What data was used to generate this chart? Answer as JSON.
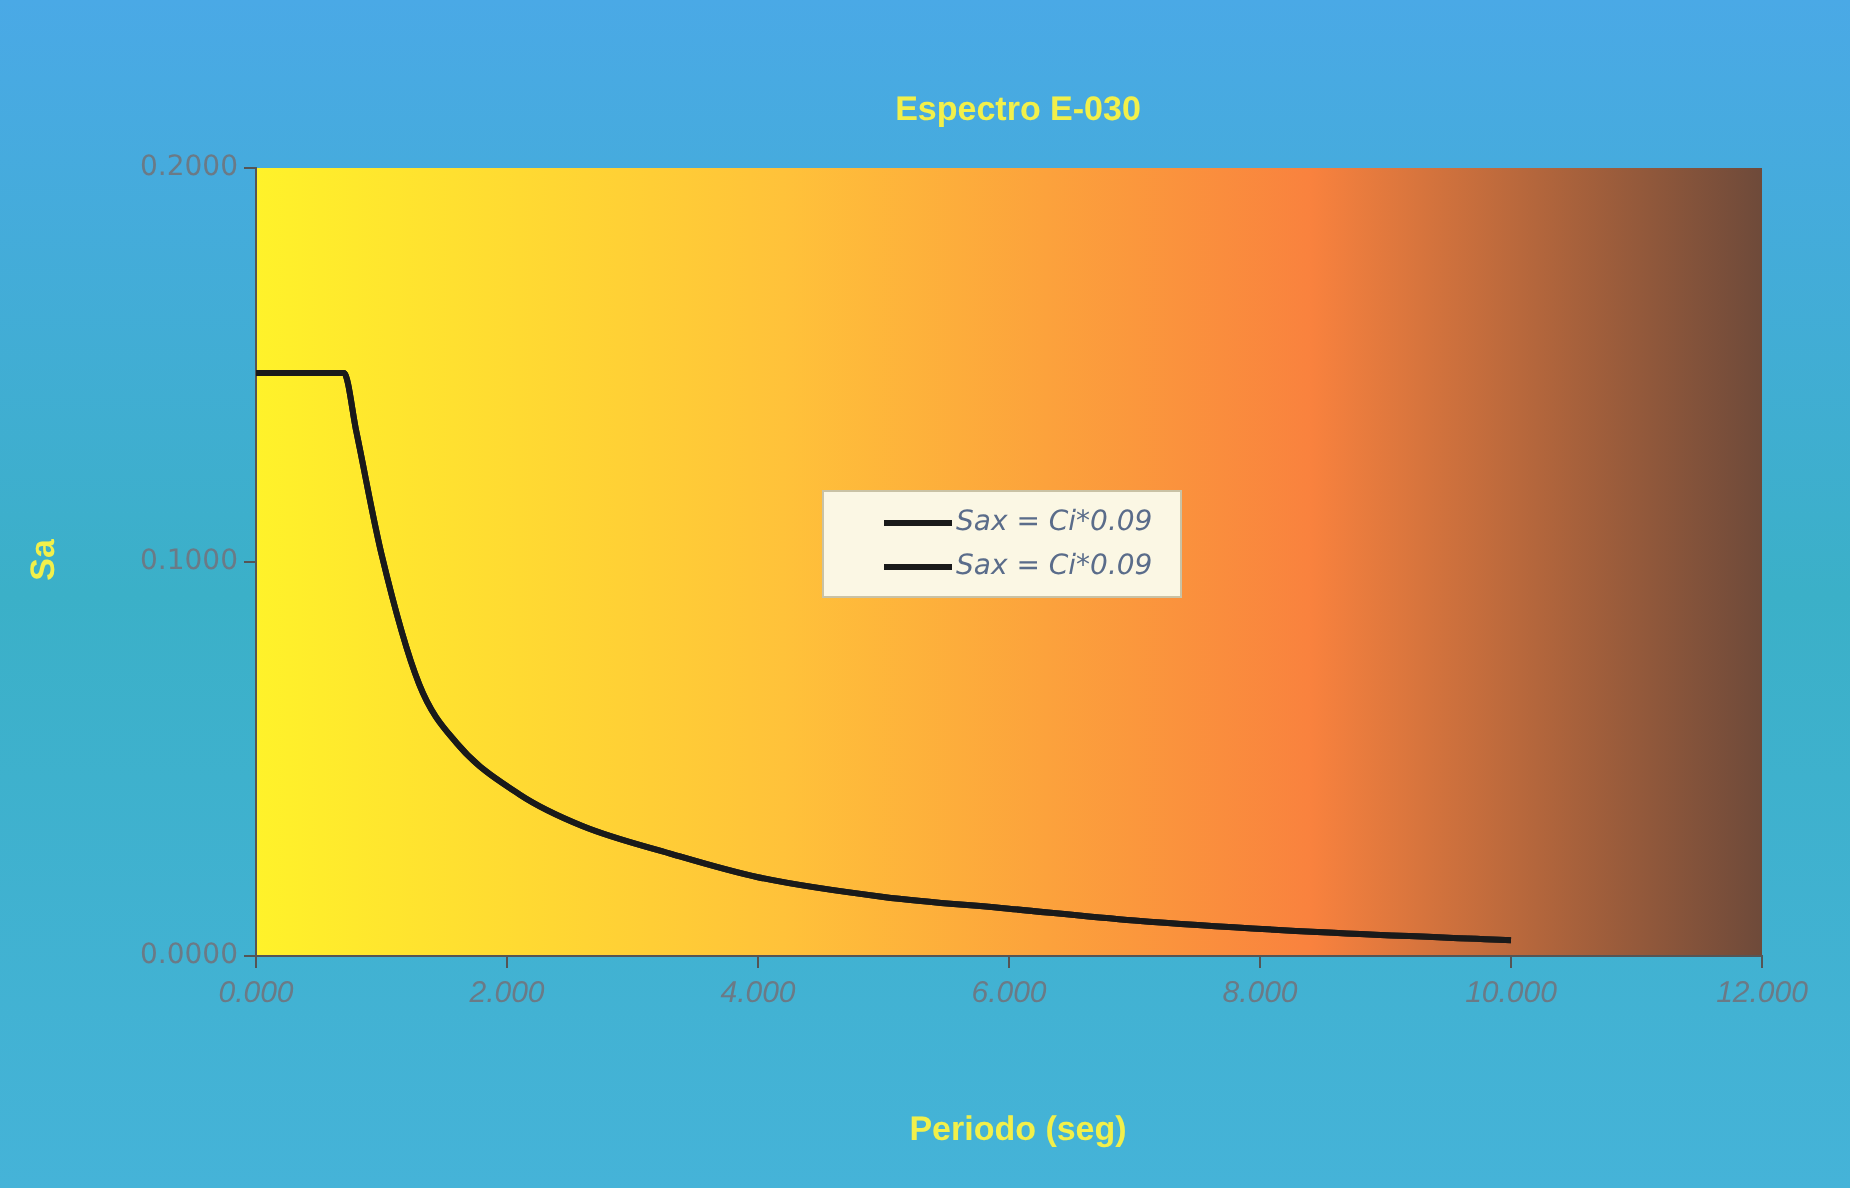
{
  "chart_data": {
    "type": "line",
    "title": "Espectro E-030",
    "xlabel": "Periodo (seg)",
    "ylabel": "Sa",
    "xlim": [
      0,
      12
    ],
    "xticks": [
      {
        "value": 0,
        "label": "0.000"
      },
      {
        "value": 2,
        "label": "2.000"
      },
      {
        "value": 4,
        "label": "4.000"
      },
      {
        "value": 6,
        "label": "6.000"
      },
      {
        "value": 8,
        "label": "8.000"
      },
      {
        "value": 10,
        "label": "10.000"
      },
      {
        "value": 12,
        "label": "12.000"
      }
    ],
    "ylim": [
      0,
      0.2
    ],
    "yticks": [
      {
        "value": 0,
        "label": "0.0000"
      },
      {
        "value": 0.1,
        "label": "0.1000"
      },
      {
        "value": 0.2,
        "label": "0.2000"
      }
    ],
    "x": [
      0,
      0.7,
      0.8,
      1.0,
      1.3,
      1.6,
      2.1,
      2.6,
      3.3,
      4.0,
      5.0,
      6.0,
      7.0,
      8.5,
      10.0
    ],
    "series": [
      {
        "name": "Sax = Ci*0.09",
        "color": "#1a1a1a",
        "values": [
          0.148,
          0.148,
          0.133,
          0.102,
          0.069,
          0.054,
          0.041,
          0.033,
          0.026,
          0.02,
          0.015,
          0.012,
          0.009,
          0.006,
          0.004
        ]
      },
      {
        "name": "Sax = Ci*0.09",
        "color": "#1a1a1a",
        "values": [
          0.148,
          0.148,
          0.133,
          0.102,
          0.069,
          0.054,
          0.041,
          0.033,
          0.026,
          0.02,
          0.015,
          0.012,
          0.009,
          0.006,
          0.004
        ]
      }
    ],
    "legend": "center",
    "marker": "none",
    "line_style": "solid"
  }
}
